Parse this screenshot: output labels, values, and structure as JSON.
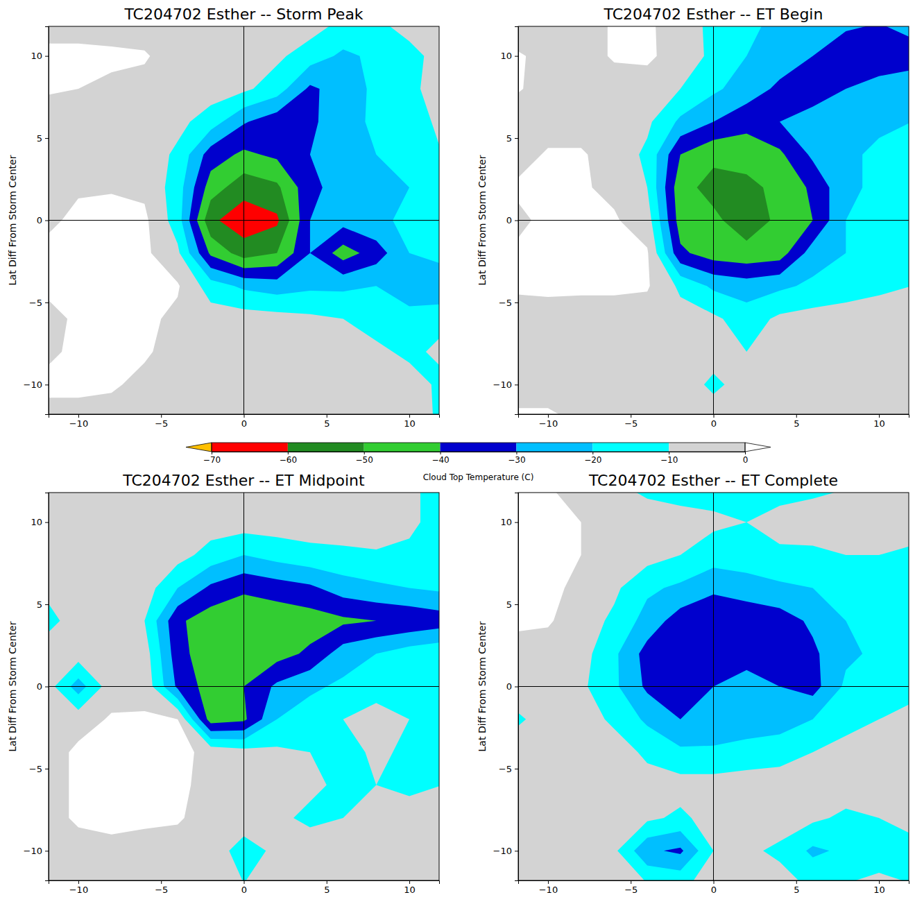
{
  "chart_data": [
    {
      "type": "contour",
      "title": "TC204702 Esther -- Storm Peak",
      "y_label": "Lat Diff From Storm Center",
      "xlim": [
        -11.8,
        11.8
      ],
      "ylim": [
        -11.8,
        11.8
      ],
      "xticks": [
        {
          "value": -10,
          "label": "−10"
        },
        {
          "value": -5,
          "label": "−5"
        },
        0,
        5,
        10
      ],
      "yticks": [
        {
          "value": -10,
          "label": "−10"
        },
        {
          "value": -5,
          "label": "−5"
        },
        0,
        5,
        10
      ],
      "center": [
        0,
        0
      ],
      "x": [
        -12,
        -10,
        -8,
        -6,
        -4,
        -2,
        0,
        2,
        4,
        6,
        8,
        10,
        12
      ],
      "y": [
        12,
        10,
        8,
        6,
        4,
        2,
        0,
        -2,
        -4,
        -6,
        -8,
        -10,
        -12
      ],
      "values": [
        [
          -5,
          -5,
          -5,
          -5,
          -5,
          -5,
          -5,
          -5,
          -5,
          -12,
          -12,
          -5,
          -5
        ],
        [
          3,
          3,
          2,
          1,
          -5,
          -5,
          -5,
          -8,
          -15,
          -22,
          -18,
          -14,
          -5
        ],
        [
          1,
          0,
          -2,
          -3,
          -4,
          -5,
          -8,
          -15,
          -32,
          -25,
          -18,
          -12,
          -6
        ],
        [
          -4,
          -4,
          -4,
          -5,
          -7,
          -15,
          -29,
          -36,
          -32,
          -24,
          -18,
          -14,
          -8
        ],
        [
          -3,
          -3,
          -3,
          -4,
          -12,
          -35,
          -42,
          -38,
          -30,
          -22,
          -20,
          -15,
          -10
        ],
        [
          -3,
          -1,
          -1,
          -2,
          -15,
          -45,
          -56,
          -52,
          -33,
          -25,
          -22,
          -20,
          -15
        ],
        [
          -2,
          2,
          4,
          2,
          -15,
          -58,
          -66,
          -62,
          -30,
          -26,
          -22,
          -18,
          -12
        ],
        [
          2,
          4,
          4,
          2,
          -8,
          -42,
          -55,
          -50,
          -30,
          -45,
          -35,
          -20,
          -15
        ],
        [
          1,
          3,
          4,
          3,
          1,
          -15,
          -22,
          -25,
          -22,
          -22,
          -20,
          -28,
          -30
        ],
        [
          -2,
          1,
          3,
          2,
          -2,
          -5,
          -5,
          -6,
          -8,
          -10,
          -14,
          -15,
          -12
        ],
        [
          -2,
          2,
          3,
          1,
          -3,
          -4,
          -5,
          -5,
          -5,
          -6,
          -8,
          -12,
          -8
        ],
        [
          2,
          2,
          1,
          -2,
          -4,
          -4,
          -5,
          -5,
          -5,
          -5,
          -5,
          -6,
          -12
        ],
        [
          -3,
          -3,
          -3,
          -3,
          -4,
          -4,
          -5,
          -5,
          -5,
          -5,
          -5,
          -5,
          -12
        ]
      ]
    },
    {
      "type": "contour",
      "title": "TC204702 Esther -- ET Begin",
      "y_label": "Lat Diff From Storm Center",
      "xlim": [
        -11.8,
        11.8
      ],
      "ylim": [
        -11.8,
        11.8
      ],
      "xticks": [
        {
          "value": -10,
          "label": "−10"
        },
        {
          "value": -5,
          "label": "−5"
        },
        0,
        5,
        10
      ],
      "yticks": [
        {
          "value": -10,
          "label": "−10"
        },
        {
          "value": -5,
          "label": "−5"
        },
        0,
        5,
        10
      ],
      "center": [
        0,
        0
      ],
      "x": [
        -12,
        -10,
        -8,
        -6,
        -4,
        -2,
        0,
        2,
        4,
        6,
        8,
        10,
        12
      ],
      "y": [
        12,
        10,
        8,
        6,
        4,
        2,
        0,
        -2,
        -4,
        -6,
        -8,
        -10,
        -12
      ],
      "values": [
        [
          -4,
          -4,
          -4,
          1,
          2,
          -6,
          -12,
          -18,
          -22,
          -24,
          -28,
          -30,
          -25
        ],
        [
          1,
          -2,
          -4,
          1,
          2,
          -5,
          -12,
          -20,
          -25,
          -30,
          -36,
          -38,
          -36
        ],
        [
          1,
          -3,
          -4,
          -4,
          -5,
          -10,
          -18,
          -25,
          -32,
          -36,
          -30,
          -25,
          -22
        ],
        [
          -4,
          -4,
          -4,
          -5,
          -8,
          -22,
          -30,
          -36,
          -30,
          -25,
          -22,
          -22,
          -20
        ],
        [
          -4,
          1,
          1,
          -4,
          -12,
          -40,
          -48,
          -47,
          -42,
          -28,
          -22,
          -18,
          -18
        ],
        [
          1,
          2,
          1,
          -2,
          -10,
          -47,
          -53,
          -52,
          -48,
          -38,
          -22,
          -18,
          -15
        ],
        [
          -2,
          2,
          3,
          1,
          -5,
          -45,
          -48,
          -55,
          -48,
          -40,
          -20,
          -18,
          -12
        ],
        [
          1,
          2,
          3,
          2,
          1,
          -38,
          -45,
          -47,
          -45,
          -25,
          -20,
          -18,
          -12
        ],
        [
          1,
          2,
          2,
          2,
          1,
          -12,
          -22,
          -25,
          -22,
          -18,
          -15,
          -12,
          -10
        ],
        [
          -3,
          -4,
          -5,
          -5,
          -5,
          -6,
          -8,
          -15,
          -8,
          -6,
          -5,
          -5,
          -5
        ],
        [
          -5,
          -5,
          -5,
          -5,
          -5,
          -5,
          -6,
          -10,
          -8,
          -5,
          -5,
          -5,
          -5
        ],
        [
          -5,
          -5,
          -5,
          -5,
          -5,
          -5,
          -12,
          -6,
          -5,
          -5,
          -5,
          -5,
          -5
        ],
        [
          2,
          2,
          -2,
          -5,
          -5,
          -5,
          -5,
          -5,
          -5,
          -5,
          -5,
          -5,
          -5
        ]
      ]
    },
    {
      "type": "contour",
      "title": "TC204702 Esther -- ET Midpoint",
      "y_label": "Lat Diff From Storm Center",
      "xlim": [
        -11.8,
        11.8
      ],
      "ylim": [
        -11.8,
        11.8
      ],
      "xticks": [
        {
          "value": -10,
          "label": "−10"
        },
        {
          "value": -5,
          "label": "−5"
        },
        0,
        5,
        10
      ],
      "yticks": [
        {
          "value": -10,
          "label": "−10"
        },
        {
          "value": -5,
          "label": "−5"
        },
        0,
        5,
        10
      ],
      "center": [
        0,
        0
      ],
      "x": [
        -12,
        -10,
        -8,
        -6,
        -4,
        -2,
        0,
        2,
        4,
        6,
        8,
        10,
        12
      ],
      "y": [
        12,
        10,
        8,
        6,
        4,
        2,
        0,
        -2,
        -4,
        -6,
        -8,
        -10,
        -12
      ],
      "values": [
        [
          -5,
          -5,
          -5,
          -5,
          -5,
          -5,
          -5,
          -5,
          -5,
          -5,
          -5,
          -8,
          -14
        ],
        [
          -5,
          -5,
          -5,
          -5,
          -5,
          -5,
          -5,
          -5,
          -5,
          -5,
          -5,
          -8,
          -14
        ],
        [
          -5,
          -5,
          -5,
          -5,
          -6,
          -14,
          -20,
          -16,
          -13,
          -12,
          -11,
          -12,
          -15
        ],
        [
          -8,
          -5,
          -5,
          -5,
          -20,
          -32,
          -38,
          -35,
          -32,
          -25,
          -22,
          -20,
          -18
        ],
        [
          -14,
          -5,
          -5,
          -10,
          -38,
          -46,
          -48,
          -47,
          -45,
          -42,
          -40,
          -38,
          -35
        ],
        [
          -5,
          -5,
          -5,
          -5,
          -36,
          -47,
          -48,
          -44,
          -38,
          -25,
          -20,
          -15,
          -12
        ],
        [
          -4,
          -25,
          -4,
          -3,
          -32,
          -45,
          -40,
          -28,
          -22,
          -18,
          -12,
          -12,
          -10
        ],
        [
          -5,
          -4,
          1,
          1,
          0,
          -45,
          -42,
          -20,
          -15,
          -10,
          -8,
          -10,
          -12
        ],
        [
          -5,
          2,
          3,
          3,
          3,
          -3,
          -6,
          -8,
          -10,
          -14,
          -8,
          -12,
          -14
        ],
        [
          -5,
          2,
          3,
          3,
          2,
          -3,
          -5,
          -5,
          -8,
          -12,
          -10,
          -12,
          -10
        ],
        [
          -5,
          2,
          3,
          2,
          1,
          -4,
          -5,
          -8,
          -12,
          -10,
          -8,
          -6,
          -5
        ],
        [
          -5,
          -5,
          -3,
          -4,
          -4,
          -5,
          -14,
          -8,
          -5,
          -5,
          -5,
          -5,
          -5
        ],
        [
          -5,
          -5,
          -5,
          -5,
          -5,
          -5,
          -10,
          -5,
          -5,
          -5,
          -5,
          -5,
          -5
        ]
      ]
    },
    {
      "type": "contour",
      "title": "TC204702 Esther -- ET Complete",
      "y_label": "Lat Diff From Storm Center",
      "xlim": [
        -11.8,
        11.8
      ],
      "ylim": [
        -11.8,
        11.8
      ],
      "xticks": [
        {
          "value": -10,
          "label": "−10"
        },
        {
          "value": -5,
          "label": "−5"
        },
        0,
        5,
        10
      ],
      "yticks": [
        {
          "value": -10,
          "label": "−10"
        },
        {
          "value": -5,
          "label": "−5"
        },
        0,
        5,
        10
      ],
      "center": [
        0,
        0
      ],
      "x": [
        -12,
        -10,
        -8,
        -6,
        -4,
        -2,
        0,
        2,
        4,
        6,
        8,
        10,
        12
      ],
      "y": [
        12,
        10,
        8,
        6,
        4,
        2,
        0,
        -2,
        -4,
        -6,
        -8,
        -10,
        -12
      ],
      "values": [
        [
          1,
          1,
          -5,
          -8,
          -12,
          -14,
          -14,
          -14,
          -14,
          -12,
          -10,
          -8,
          -6
        ],
        [
          2,
          3,
          0,
          -4,
          -5,
          -6,
          -8,
          -10,
          -6,
          -5,
          -5,
          -5,
          -5
        ],
        [
          2,
          3,
          0,
          -5,
          -6,
          -10,
          -15,
          -14,
          -12,
          -12,
          -10,
          -10,
          -12
        ],
        [
          1,
          2,
          -2,
          -8,
          -18,
          -22,
          -28,
          -25,
          -22,
          -20,
          -15,
          -14,
          -16
        ],
        [
          2,
          1,
          -5,
          -12,
          -24,
          -35,
          -38,
          -37,
          -35,
          -28,
          -20,
          -16,
          -18
        ],
        [
          -4,
          -4,
          -6,
          -18,
          -34,
          -38,
          -36,
          -32,
          -35,
          -32,
          -22,
          -18,
          -18
        ],
        [
          -5,
          -8,
          -8,
          -18,
          -32,
          -36,
          -30,
          -28,
          -30,
          -34,
          -18,
          -12,
          -12
        ],
        [
          -12,
          -6,
          -5,
          -12,
          -22,
          -30,
          -28,
          -26,
          -25,
          -20,
          -14,
          -10,
          -8
        ],
        [
          -5,
          -5,
          -5,
          -5,
          -12,
          -18,
          -18,
          -16,
          -14,
          -10,
          -6,
          -5,
          -5
        ],
        [
          -5,
          -5,
          -5,
          -5,
          -6,
          -6,
          -6,
          -5,
          -5,
          -5,
          -5,
          -5,
          -5
        ],
        [
          -5,
          -5,
          -5,
          -5,
          -8,
          -12,
          -6,
          -5,
          -5,
          -8,
          -12,
          -10,
          -8
        ],
        [
          -5,
          -5,
          -5,
          -8,
          -28,
          -32,
          -10,
          -8,
          -12,
          -22,
          -18,
          -14,
          -12
        ],
        [
          -5,
          -5,
          -5,
          -5,
          -10,
          -12,
          -6,
          -5,
          -6,
          -12,
          -10,
          -8,
          -10
        ]
      ]
    }
  ],
  "colorbar": {
    "label": "Cloud Top Temperature (C)",
    "range": [
      -70,
      0
    ],
    "ticks": [
      {
        "value": -70,
        "label": "−70"
      },
      {
        "value": -60,
        "label": "−60"
      },
      {
        "value": -50,
        "label": "−50"
      },
      {
        "value": -40,
        "label": "−40"
      },
      {
        "value": -30,
        "label": "−30"
      },
      {
        "value": -20,
        "label": "−20"
      },
      {
        "value": -10,
        "label": "−10"
      },
      0
    ],
    "levels": [
      -70,
      -60,
      -50,
      -40,
      -30,
      -20,
      -10,
      0
    ],
    "colors": [
      "#ffc000",
      "#ff0000",
      "#228b22",
      "#32cd32",
      "#0000cd",
      "#00bfff",
      "#00ffff",
      "#d3d3d3",
      "#ffffff"
    ]
  }
}
